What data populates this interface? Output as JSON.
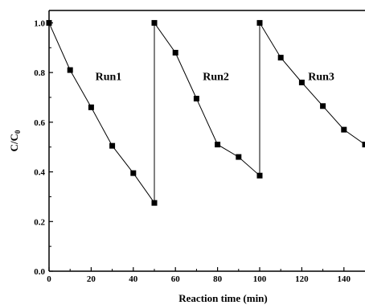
{
  "chart_data": {
    "type": "scatter",
    "title": "",
    "xlabel": "Reaction time (min)",
    "ylabel": "C/C",
    "ylabel_subscript": "0",
    "xlim": [
      0,
      150
    ],
    "ylim": [
      0,
      1.05
    ],
    "x_ticks": [
      0,
      20,
      40,
      60,
      80,
      100,
      120,
      140
    ],
    "y_ticks": [
      0.0,
      0.2,
      0.4,
      0.6,
      0.8,
      1.0
    ],
    "x_tick_labels": [
      "0",
      "20",
      "40",
      "60",
      "80",
      "100",
      "120",
      "140"
    ],
    "y_tick_labels": [
      "0.0",
      "0.2",
      "0.4",
      "0.6",
      "0.8",
      "1.0"
    ],
    "grid": false,
    "legend": "none",
    "series_color": "#000000",
    "series": [
      {
        "name": "Run1",
        "x": [
          0,
          10,
          20,
          30,
          40,
          50
        ],
        "y": [
          1.0,
          0.81,
          0.66,
          0.505,
          0.395,
          0.275
        ]
      },
      {
        "name": "Run2",
        "x": [
          50,
          60,
          70,
          80,
          90,
          100
        ],
        "y": [
          1.0,
          0.88,
          0.695,
          0.51,
          0.46,
          0.385
        ]
      },
      {
        "name": "Run3",
        "x": [
          100,
          110,
          120,
          130,
          140,
          150
        ],
        "y": [
          1.0,
          0.86,
          0.76,
          0.665,
          0.57,
          0.51
        ]
      }
    ],
    "annotations": [
      {
        "text": "Run1",
        "x": 22,
        "y": 0.77
      },
      {
        "text": "Run2",
        "x": 73,
        "y": 0.77
      },
      {
        "text": "Run3",
        "x": 123,
        "y": 0.77
      }
    ]
  }
}
